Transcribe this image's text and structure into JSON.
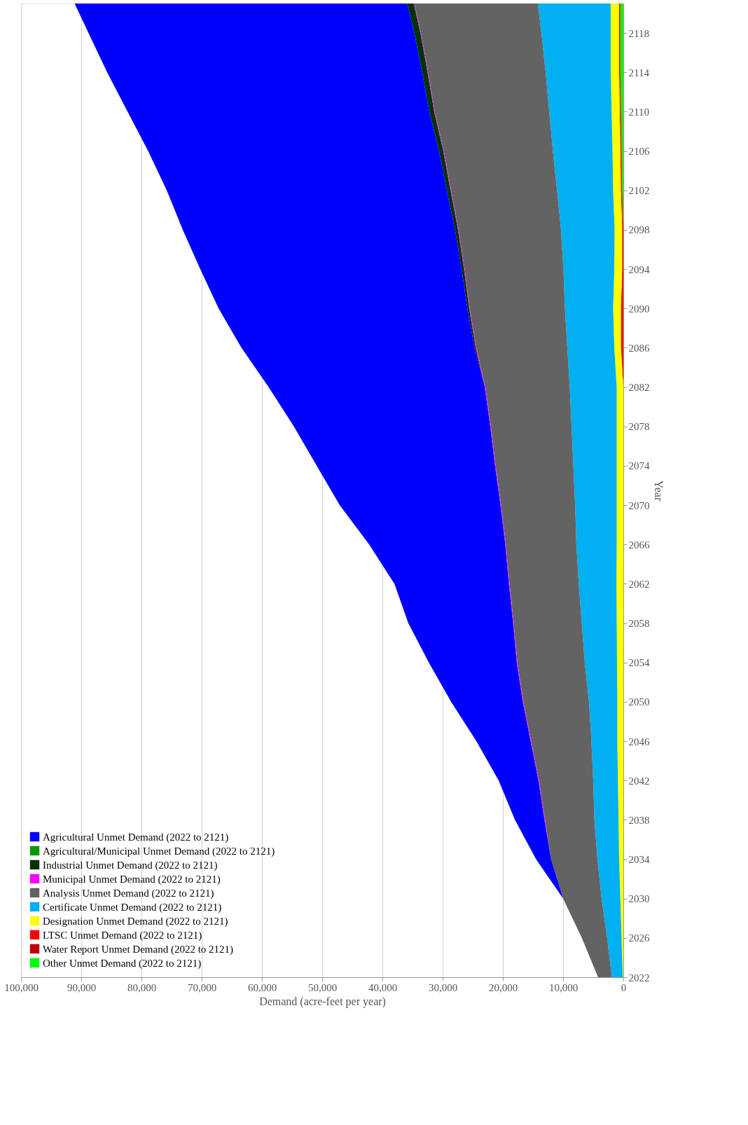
{
  "chart_data": {
    "type": "area",
    "stacked": true,
    "orientation": "horizontal",
    "xlabel": "Demand (acre-feet per year)",
    "ylabel": "Year",
    "x": [
      2022,
      2026,
      2030,
      2034,
      2038,
      2042,
      2046,
      2050,
      2054,
      2058,
      2062,
      2066,
      2070,
      2074,
      2078,
      2082,
      2086,
      2090,
      2094,
      2098,
      2102,
      2106,
      2110,
      2114,
      2118,
      2121
    ],
    "series": [
      {
        "name": "Other Unmet Demand (2022 to 2121)",
        "color": "#00ff00",
        "values": [
          0,
          0,
          0,
          0,
          0,
          0,
          0,
          0,
          0,
          0,
          0,
          0,
          0,
          0,
          0,
          0,
          0,
          0,
          0,
          0,
          200,
          300,
          400,
          500,
          500,
          500
        ]
      },
      {
        "name": "Water Report Unmet Demand (2022 to 2121)",
        "color": "#c00000",
        "values": [
          null,
          null,
          null,
          null,
          null,
          null,
          null,
          null,
          null,
          null,
          null,
          null,
          null,
          null,
          null,
          null,
          null,
          null,
          null,
          null,
          null,
          null,
          null,
          null,
          null,
          null
        ]
      },
      {
        "name": "LTSC Unmet Demand (2022 to 2121)",
        "color": "#ff0000",
        "values": [
          0,
          0,
          0,
          0,
          0,
          0,
          0,
          0,
          0,
          0,
          0,
          0,
          0,
          0,
          0,
          0,
          400,
          400,
          200,
          200,
          200,
          200,
          200,
          200,
          200,
          200
        ]
      },
      {
        "name": "Designation Unmet Demand (2022 to 2121)",
        "color": "#ffff00",
        "values": [
          100,
          300,
          500,
          700,
          800,
          900,
          1000,
          1000,
          1050,
          1100,
          1150,
          1100,
          1100,
          1100,
          1100,
          1100,
          1100,
          1300,
          1300,
          1250,
          1300,
          1300,
          1350,
          1400,
          1400,
          1400
        ]
      },
      {
        "name": "Certificate Unmet Demand (2022 to 2121)",
        "color": "#00b0f0",
        "values": [
          1800,
          2400,
          3100,
          3600,
          4000,
          4100,
          4300,
          4700,
          5350,
          5800,
          6250,
          6700,
          6900,
          7200,
          7500,
          7800,
          7800,
          8000,
          8450,
          8900,
          9300,
          9900,
          10350,
          10800,
          11500,
          12100
        ]
      },
      {
        "name": "Analysis Unmet Demand (2022 to 2121)",
        "color": "#636363",
        "values": [
          2300,
          4200,
          6400,
          7700,
          8200,
          9000,
          10000,
          10900,
          11200,
          11300,
          11500,
          11700,
          12300,
          12900,
          13400,
          14000,
          15100,
          15800,
          16400,
          17000,
          17600,
          18100,
          19000,
          19500,
          20000,
          20500
        ]
      },
      {
        "name": "Municipal Unmet Demand (2022 to 2121)",
        "color": "#ff00ff",
        "values": [
          0,
          0,
          0,
          0,
          100,
          100,
          100,
          100,
          100,
          100,
          100,
          100,
          100,
          100,
          100,
          100,
          100,
          100,
          100,
          100,
          100,
          100,
          100,
          100,
          100,
          100
        ]
      },
      {
        "name": "Industrial Unmet Demand (2022 to 2121)",
        "color": "#003300",
        "values": [
          0,
          0,
          0,
          0,
          0,
          0,
          0,
          0,
          0,
          0,
          0,
          0,
          0,
          0,
          0,
          0,
          200,
          300,
          400,
          500,
          600,
          700,
          800,
          900,
          1000,
          1100
        ]
      },
      {
        "name": "Agricultural/Municipal Unmet Demand (2022 to 2121)",
        "color": "#009900",
        "values": [
          null,
          null,
          null,
          null,
          null,
          null,
          null,
          null,
          null,
          null,
          null,
          null,
          null,
          null,
          null,
          null,
          null,
          null,
          null,
          null,
          null,
          null,
          null,
          null,
          null,
          null
        ]
      },
      {
        "name": "Agricultural Unmet Demand (2022 to 2121)",
        "color": "#0000ff",
        "values": [
          0,
          0,
          0,
          2500,
          4900,
          6600,
          9000,
          11900,
          14600,
          17400,
          19000,
          22600,
          26700,
          29600,
          32600,
          35900,
          38700,
          41300,
          43400,
          45200,
          46500,
          48300,
          50100,
          52300,
          54100,
          55200
        ]
      }
    ],
    "xlim": [
      100000,
      0
    ],
    "xticks": [
      {
        "value": 100000,
        "label": "100,000"
      },
      {
        "value": 90000,
        "label": "90,000"
      },
      {
        "value": 80000,
        "label": "80,000"
      },
      {
        "value": 70000,
        "label": "70,000"
      },
      {
        "value": 60000,
        "label": "60,000"
      },
      {
        "value": 50000,
        "label": "50,000"
      },
      {
        "value": 40000,
        "label": "40,000"
      },
      {
        "value": 30000,
        "label": "30,000"
      },
      {
        "value": 20000,
        "label": "20,000"
      },
      {
        "value": 10000,
        "label": "10,000"
      },
      0
    ],
    "ylim": [
      2022,
      2121
    ],
    "yticks": [
      2022,
      2026,
      2030,
      2034,
      2038,
      2042,
      2046,
      2050,
      2054,
      2058,
      2062,
      2066,
      2070,
      2074,
      2078,
      2082,
      2086,
      2090,
      2094,
      2098,
      2102,
      2106,
      2110,
      2114,
      2118
    ],
    "grid": "x",
    "legend": "bottom left"
  }
}
